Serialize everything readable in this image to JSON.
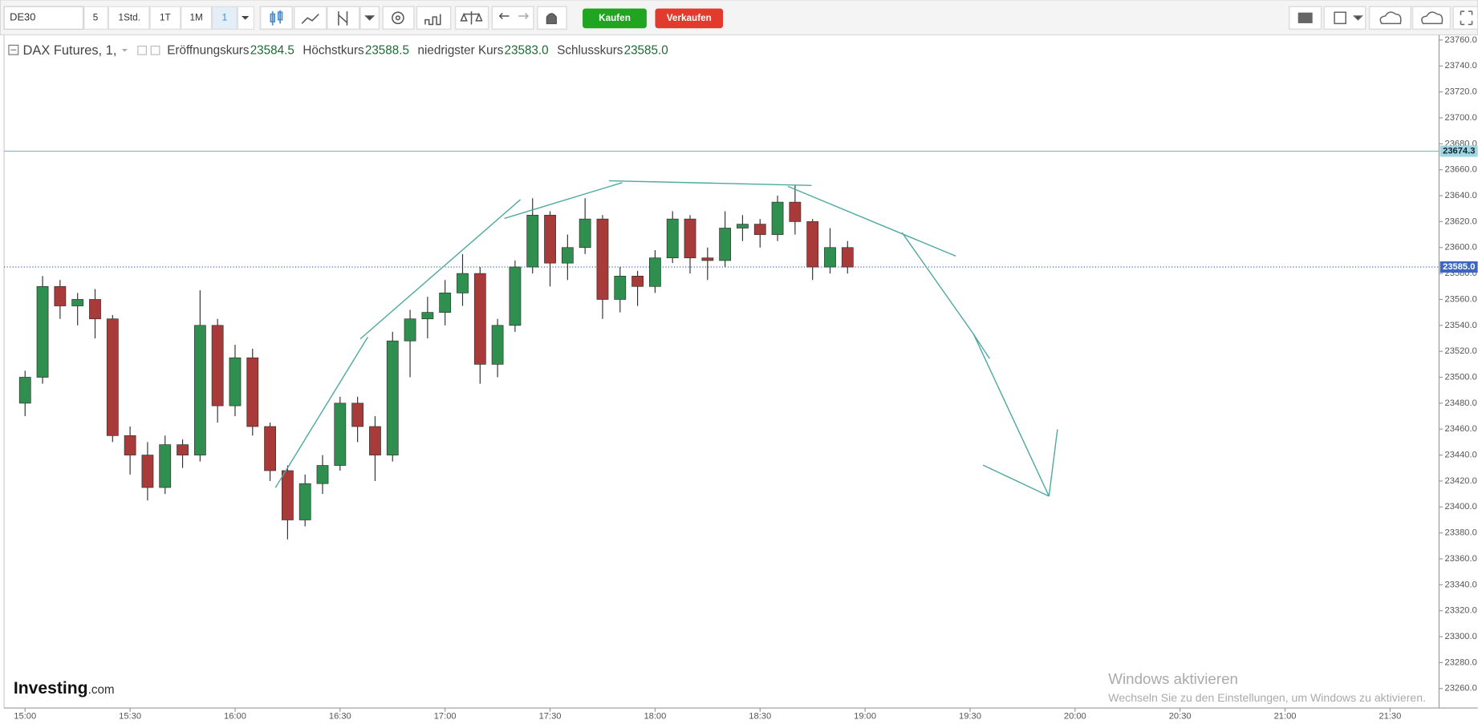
{
  "toolbar": {
    "symbol": "DE30",
    "intervals": [
      "5",
      "1Std.",
      "1T",
      "1M",
      "1"
    ],
    "buy": "Kaufen",
    "sell": "Verkaufen"
  },
  "header": {
    "name": "DAX Futures, 1,",
    "fields": [
      {
        "label": "Eröffnungskurs",
        "value": "23584.5"
      },
      {
        "label": "Höchstkurs",
        "value": "23588.5"
      },
      {
        "label": "niedrigster Kurs",
        "value": "23583.0"
      },
      {
        "label": "Schlusskurs",
        "value": "23585.0"
      }
    ]
  },
  "watermark": {
    "brand": "Investing",
    "suffix": ".com"
  },
  "windows_notice": {
    "title": "Windows aktivieren",
    "text": "Wechseln Sie zu den Einstellungen, um Windows zu aktivieren."
  },
  "chart_data": {
    "type": "candlestick",
    "x": [
      "15:00",
      "15:05",
      "15:10",
      "15:15",
      "15:20",
      "15:25",
      "15:30",
      "15:35",
      "15:40",
      "15:45",
      "15:50",
      "15:55",
      "16:00",
      "16:05",
      "16:10",
      "16:15",
      "16:20",
      "16:25",
      "16:30",
      "16:35",
      "16:40",
      "16:45",
      "16:50",
      "16:55",
      "17:00",
      "17:05",
      "17:10",
      "17:15",
      "17:20",
      "17:25",
      "17:30",
      "17:35",
      "17:40",
      "17:45",
      "17:50",
      "17:55",
      "18:00",
      "18:05",
      "18:10",
      "18:15",
      "18:20",
      "18:25",
      "18:30",
      "18:35",
      "18:40",
      "18:45",
      "18:50",
      "18:55"
    ],
    "open": [
      23480,
      23500,
      23570,
      23555,
      23560,
      23545,
      23455,
      23440,
      23415,
      23448,
      23440,
      23540,
      23478,
      23515,
      23462,
      23428,
      23390,
      23418,
      23432,
      23480,
      23462,
      23440,
      23528,
      23545,
      23550,
      23565,
      23580,
      23510,
      23540,
      23585,
      23625,
      23588,
      23600,
      23622,
      23560,
      23578,
      23570,
      23592,
      23622,
      23592,
      23590,
      23615,
      23618,
      23610,
      23635,
      23620,
      23585,
      23600
    ],
    "high": [
      23505,
      23578,
      23575,
      23565,
      23568,
      23548,
      23462,
      23450,
      23455,
      23452,
      23567,
      23545,
      23525,
      23522,
      23465,
      23432,
      23425,
      23440,
      23485,
      23485,
      23470,
      23535,
      23552,
      23562,
      23575,
      23595,
      23585,
      23545,
      23590,
      23638,
      23628,
      23610,
      23638,
      23625,
      23585,
      23582,
      23598,
      23628,
      23625,
      23600,
      23628,
      23625,
      23622,
      23640,
      23648,
      23622,
      23615,
      23605
    ],
    "low": [
      23470,
      23495,
      23545,
      23540,
      23530,
      23450,
      23425,
      23405,
      23410,
      23430,
      23435,
      23465,
      23470,
      23455,
      23420,
      23375,
      23385,
      23410,
      23428,
      23450,
      23420,
      23435,
      23500,
      23530,
      23540,
      23555,
      23495,
      23500,
      23535,
      23580,
      23570,
      23575,
      23595,
      23545,
      23550,
      23555,
      23565,
      23588,
      23580,
      23575,
      23585,
      23605,
      23600,
      23605,
      23610,
      23575,
      23580,
      23580
    ],
    "close": [
      23500,
      23570,
      23555,
      23560,
      23545,
      23455,
      23440,
      23415,
      23448,
      23440,
      23540,
      23478,
      23515,
      23462,
      23428,
      23390,
      23418,
      23432,
      23480,
      23462,
      23440,
      23528,
      23545,
      23550,
      23565,
      23580,
      23510,
      23540,
      23585,
      23625,
      23588,
      23600,
      23622,
      23560,
      23578,
      23570,
      23592,
      23622,
      23592,
      23590,
      23615,
      23618,
      23610,
      23635,
      23620,
      23585,
      23600,
      23585
    ],
    "up_color": "#2f8f4e",
    "down_color": "#a83a3a",
    "xlim": [
      "14:54",
      "21:44"
    ],
    "xticks": [
      "15:00",
      "15:30",
      "16:00",
      "16:30",
      "17:00",
      "17:30",
      "18:00",
      "18:30",
      "19:00",
      "19:30",
      "20:00",
      "20:30",
      "21:00",
      "21:30"
    ],
    "ylim": [
      23245,
      23764
    ],
    "yticks": [
      {
        "value": 23260,
        "label": "23260.0"
      },
      {
        "value": 23280,
        "label": "23280.0"
      },
      {
        "value": 23300,
        "label": "23300.0"
      },
      {
        "value": 23320,
        "label": "23320.0"
      },
      {
        "value": 23340,
        "label": "23340.0"
      },
      {
        "value": 23360,
        "label": "23360.0"
      },
      {
        "value": 23380,
        "label": "23380.0"
      },
      {
        "value": 23400,
        "label": "23400.0"
      },
      {
        "value": 23420,
        "label": "23420.0"
      },
      {
        "value": 23440,
        "label": "23440.0"
      },
      {
        "value": 23460,
        "label": "23460.0"
      },
      {
        "value": 23480,
        "label": "23480.0"
      },
      {
        "value": 23500,
        "label": "23500.0"
      },
      {
        "value": 23520,
        "label": "23520.0"
      },
      {
        "value": 23540,
        "label": "23540.0"
      },
      {
        "value": 23560,
        "label": "23560.0"
      },
      {
        "value": 23580,
        "label": "23580.0"
      },
      {
        "value": 23600,
        "label": "23600.0"
      },
      {
        "value": 23620,
        "label": "23620.0"
      },
      {
        "value": 23640,
        "label": "23640.0"
      },
      {
        "value": 23660,
        "label": "23660.0"
      },
      {
        "value": 23680,
        "label": "23680.0"
      },
      {
        "value": 23700,
        "label": "23700.0"
      },
      {
        "value": 23720,
        "label": "23720.0"
      },
      {
        "value": 23740,
        "label": "23740.0"
      },
      {
        "value": 23760,
        "label": "23760.0"
      }
    ],
    "level_line": {
      "value": 23674.3,
      "color": "#7fb8c8"
    },
    "last_price": {
      "value": 23585.0,
      "label": "23585.0",
      "color": "#3b66c4"
    }
  }
}
